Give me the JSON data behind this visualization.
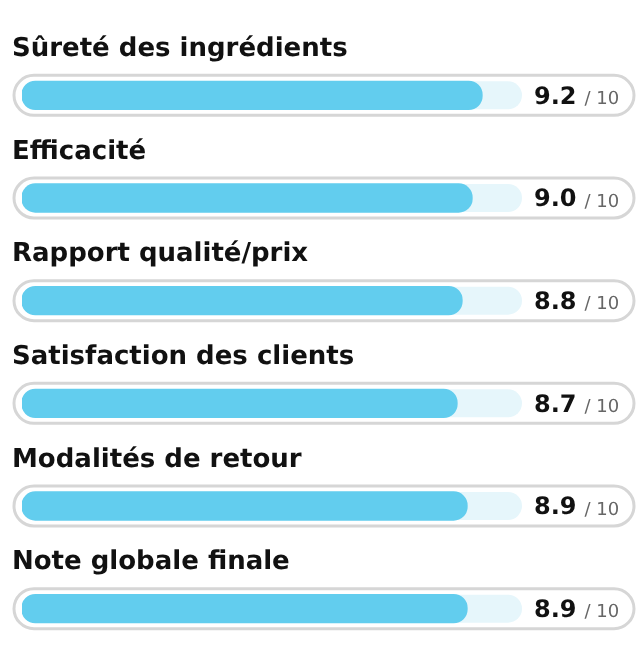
{
  "chart_data": {
    "type": "bar",
    "orientation": "horizontal",
    "categories": [
      "Sûreté des ingrédients",
      "Efficacité",
      "Rapport qualité/prix",
      "Satisfaction des clients",
      "Modalités de retour",
      "Note globale finale"
    ],
    "values": [
      9.2,
      9.0,
      8.8,
      8.7,
      8.9,
      8.9
    ],
    "value_labels": [
      "9.2",
      "9.0",
      "8.8",
      "8.7",
      "8.9",
      "8.9"
    ],
    "annotations": [
      "/ 10",
      "/ 10",
      "/ 10",
      "/ 10",
      "/ 10",
      "/ 10"
    ],
    "color": "#62cdee",
    "xlim": [
      0,
      10
    ],
    "legend": false
  }
}
